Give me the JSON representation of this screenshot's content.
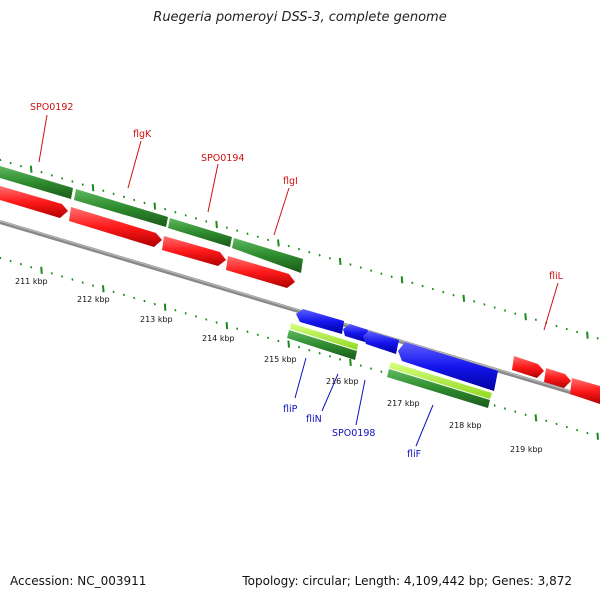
{
  "title": "Ruegeria pomeroyi DSS-3, complete genome",
  "accession": "Accession: NC_003911",
  "topology": "Topology: circular; Length: 4,109,442 bp; Genes: 3,872",
  "colors": {
    "forward_cds": "#ff2020",
    "forward_gene": "#2e8b2e",
    "reverse_cds": "#1a1aee",
    "reverse_gene_light": "#9ee830",
    "reverse_gene_dark": "#2e8b2e",
    "backbone": "#8a8a8a",
    "label_forward": "#d01010",
    "label_reverse": "#1010c0",
    "tick": "#1a8a1a"
  },
  "kbp_labels": [
    "211 kbp",
    "212 kbp",
    "213 kbp",
    "214 kbp",
    "215 kbp",
    "216 kbp",
    "217 kbp",
    "218 kbp",
    "219 kbp"
  ],
  "forward_labels": [
    "SPO0192",
    "flgK",
    "SPO0194",
    "flgI",
    "fliL"
  ],
  "reverse_labels": [
    "fliP",
    "fliN",
    "SPO0198",
    "fliF"
  ]
}
